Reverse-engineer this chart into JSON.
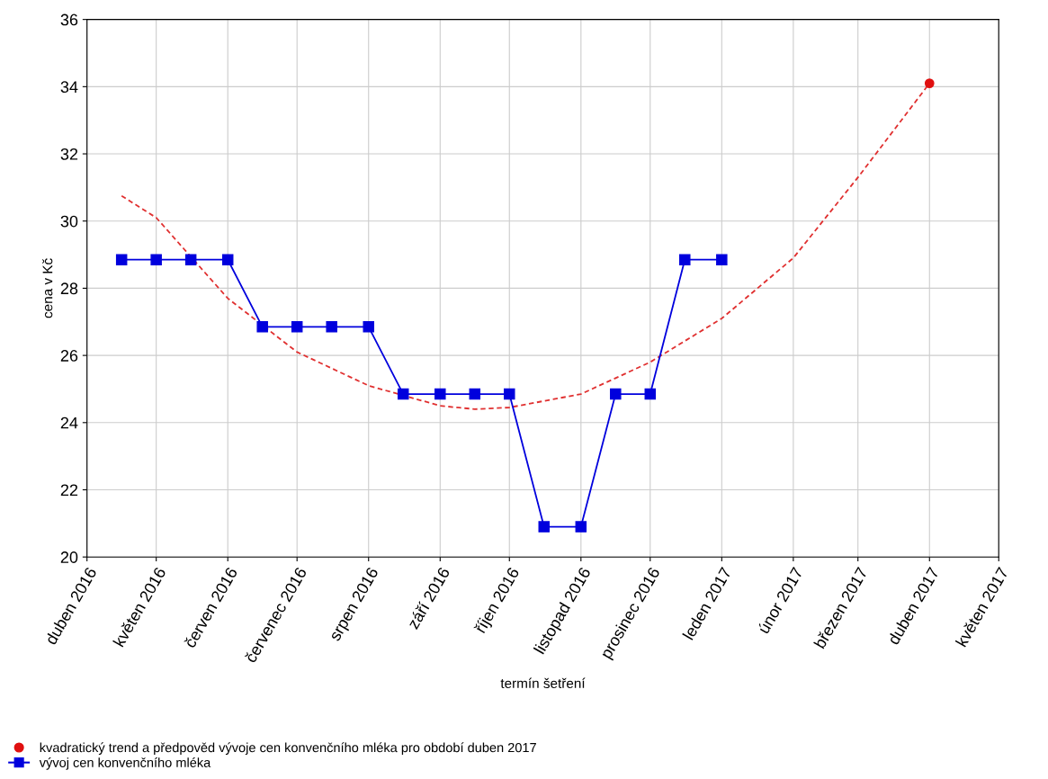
{
  "chart_data": {
    "type": "line",
    "xlabel": "termín šetření",
    "ylabel": "cena v Kč",
    "xlim": [
      "2016-04-01",
      "2017-05-01"
    ],
    "xticks": [
      {
        "value": "2016-04-01",
        "label": "duben 2016"
      },
      {
        "value": "2016-05-01",
        "label": "květen 2016"
      },
      {
        "value": "2016-06-01",
        "label": "červen 2016"
      },
      {
        "value": "2016-07-01",
        "label": "červenec 2016"
      },
      {
        "value": "2016-08-01",
        "label": "srpen 2016"
      },
      {
        "value": "2016-09-01",
        "label": "září 2016"
      },
      {
        "value": "2016-10-01",
        "label": "říjen 2016"
      },
      {
        "value": "2016-11-01",
        "label": "listopad 2016"
      },
      {
        "value": "2016-12-01",
        "label": "prosinec 2016"
      },
      {
        "value": "2017-01-01",
        "label": "leden 2017"
      },
      {
        "value": "2017-02-01",
        "label": "únor 2017"
      },
      {
        "value": "2017-03-01",
        "label": "březen 2017"
      },
      {
        "value": "2017-04-01",
        "label": "duben 2017"
      },
      {
        "value": "2017-05-01",
        "label": "květen 2017"
      }
    ],
    "ylim": [
      20,
      36
    ],
    "yticks": [
      20,
      22,
      24,
      26,
      28,
      30,
      32,
      34,
      36
    ],
    "grid": true,
    "legend": "bottom",
    "series": [
      {
        "color": "#e03030",
        "line_style": "dashed",
        "marker": "none",
        "x": [
          "2016-04-16",
          "2016-05-01",
          "2016-06-01",
          "2016-07-01",
          "2016-08-01",
          "2016-09-01",
          "2016-09-16",
          "2016-10-01",
          "2016-11-01",
          "2016-12-01",
          "2017-01-01",
          "2017-02-01",
          "2017-03-01",
          "2017-04-01"
        ],
        "values": [
          30.75,
          30.1,
          27.7,
          26.1,
          25.1,
          24.5,
          24.4,
          24.45,
          24.85,
          25.8,
          27.1,
          28.9,
          31.3,
          34.1
        ]
      },
      {
        "type": "scatter",
        "name": "kvadratický trend a předpověd vývoje cen konvenčního mléka pro období duben 2017",
        "color": "#e01010",
        "marker": "circle",
        "x": [
          "2017-04-01"
        ],
        "values": [
          34.1
        ]
      },
      {
        "name": "vývoj cen konvenčního mléka",
        "color": "#0000dd",
        "line_style": "solid",
        "marker": "square",
        "x": [
          "2016-04-16",
          "2016-05-01",
          "2016-05-16",
          "2016-06-01",
          "2016-06-16",
          "2016-07-01",
          "2016-07-16",
          "2016-08-01",
          "2016-08-16",
          "2016-09-01",
          "2016-09-16",
          "2016-10-01",
          "2016-10-16",
          "2016-11-01",
          "2016-11-16",
          "2016-12-01",
          "2016-12-16",
          "2017-01-01"
        ],
        "values": [
          28.85,
          28.85,
          28.85,
          28.85,
          26.85,
          26.85,
          26.85,
          26.85,
          24.85,
          24.85,
          24.85,
          24.85,
          20.9,
          20.9,
          24.85,
          24.85,
          28.85,
          28.85
        ]
      }
    ]
  }
}
